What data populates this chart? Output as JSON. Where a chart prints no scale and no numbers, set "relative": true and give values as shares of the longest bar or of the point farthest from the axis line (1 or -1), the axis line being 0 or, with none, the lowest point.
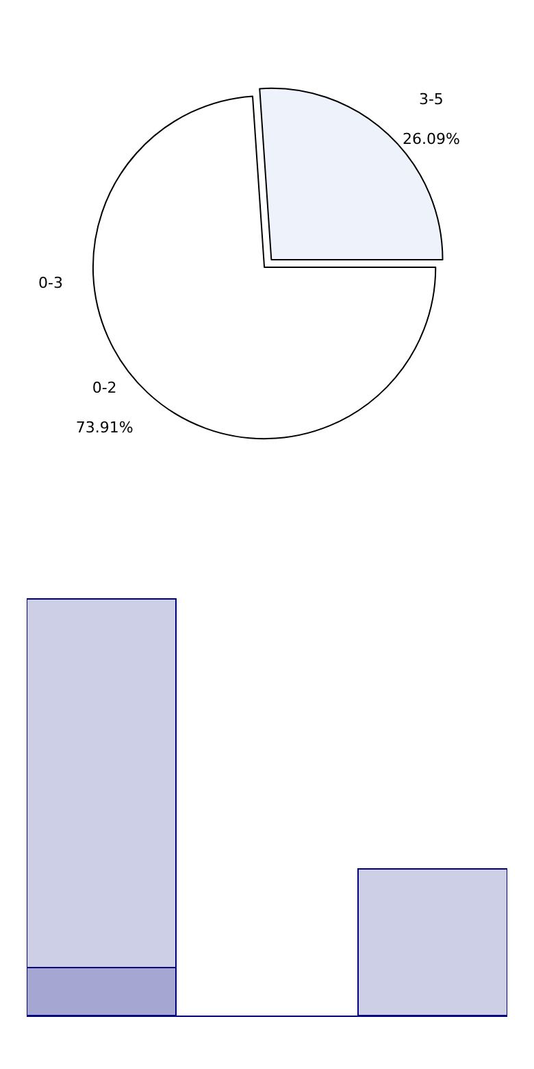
{
  "chart_data": [
    {
      "type": "pie",
      "categories": [
        "0-2",
        "3-5"
      ],
      "values": [
        73.91,
        26.09
      ],
      "colors": [
        "#ffffff",
        "#eef2fb"
      ],
      "value_labels": [
        "73.91%",
        "26.09%"
      ],
      "annotations": [
        "0-3"
      ]
    },
    {
      "type": "bar",
      "relative": true,
      "stacked": true,
      "categories": [
        null,
        null
      ],
      "series": [
        {
          "color": "#a5a6d1",
          "values": [
            0.116,
            0
          ]
        },
        {
          "color": "#cdcfe6",
          "values": [
            0.884,
            0.352
          ]
        }
      ]
    }
  ]
}
